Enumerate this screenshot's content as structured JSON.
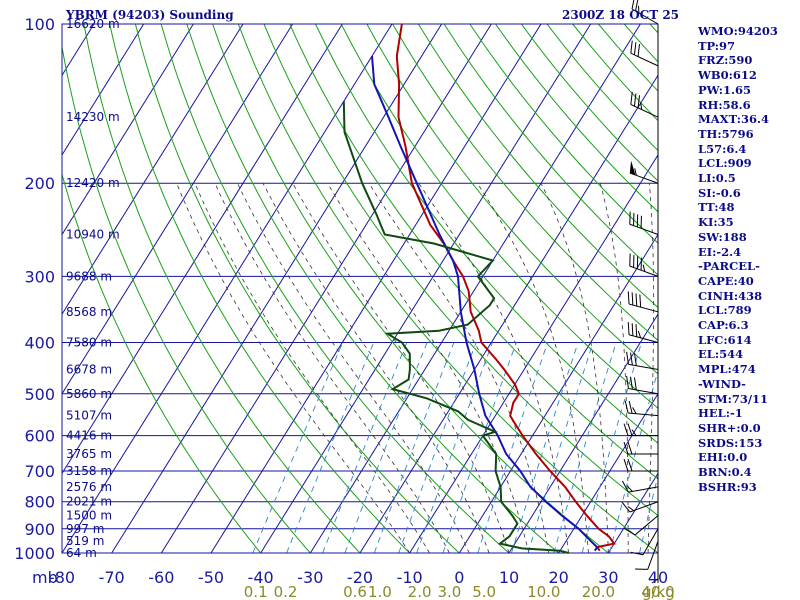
{
  "header": {
    "station_title": "YBRM (94203) Sounding",
    "datetime": "2300Z 18 OCT 25"
  },
  "indices": [
    "WMO:94203",
    "TP:97",
    "FRZ:590",
    "WB0:612",
    "PW:1.65",
    "RH:58.6",
    "MAXT:36.4",
    "TH:5796",
    "L57:6.4",
    "LCL:909",
    "LI:0.5",
    "SI:-0.6",
    "TT:48",
    "KI:35",
    "SW:188",
    "EI:-2.4",
    "-PARCEL-",
    "CAPE:40",
    "CINH:438",
    "LCL:789",
    "CAP:6.3",
    "LFC:614",
    "EL:544",
    "MPL:474",
    "-WIND-",
    "STM:73/11",
    "HEL:-1",
    "SHR+:0.0",
    "SRDS:153",
    "EHI:0.0",
    "BRN:0.4",
    "BSHR:93"
  ],
  "chart_data": {
    "type": "line",
    "title": "YBRM (94203) Sounding",
    "subtitle": "2300Z 18 OCT 25",
    "xlim": [
      -80,
      40
    ],
    "ylim": [
      1000,
      100
    ],
    "y_scale": "log",
    "grid": true,
    "pressure_ticks": [
      100,
      200,
      300,
      400,
      500,
      600,
      700,
      800,
      900,
      1000
    ],
    "pressure_unit_label": "mb",
    "temperature_ticks": [
      -80,
      -70,
      -60,
      -50,
      -40,
      -30,
      -20,
      -10,
      0,
      10,
      20,
      30,
      40
    ],
    "mixing_ratio_labels": [
      "0.1",
      "0.2",
      "0.6",
      "1.0",
      "2.0",
      "3.0",
      "5.0",
      "10.0",
      "20.0",
      "40.0"
    ],
    "mixing_ratio_unit": "g/kg",
    "mixing_ratio_positions": [
      -41,
      -35,
      -21,
      -16,
      -8,
      -2,
      5,
      17,
      28,
      40
    ],
    "height_labels": [
      {
        "p": 100,
        "text": "16620 m"
      },
      {
        "p": 150,
        "text": "14230 m"
      },
      {
        "p": 200,
        "text": "12420 m"
      },
      {
        "p": 250,
        "text": "10940 m"
      },
      {
        "p": 300,
        "text": "9688 m"
      },
      {
        "p": 350,
        "text": "8568 m"
      },
      {
        "p": 400,
        "text": "7580 m"
      },
      {
        "p": 450,
        "text": "6678 m"
      },
      {
        "p": 500,
        "text": "5860 m"
      },
      {
        "p": 550,
        "text": "5107 m"
      },
      {
        "p": 600,
        "text": "4416 m"
      },
      {
        "p": 650,
        "text": "3765 m"
      },
      {
        "p": 700,
        "text": "3158 m"
      },
      {
        "p": 750,
        "text": "2576 m"
      },
      {
        "p": 800,
        "text": "2021 m"
      },
      {
        "p": 850,
        "text": "1500 m"
      },
      {
        "p": 900,
        "text": "997 m"
      },
      {
        "p": 950,
        "text": "519 m"
      },
      {
        "p": 1000,
        "text": "64 m"
      }
    ],
    "series": [
      {
        "color": "#b00000",
        "points": [
          [
            990,
            28
          ],
          [
            975,
            27
          ],
          [
            960,
            30
          ],
          [
            930,
            28
          ],
          [
            900,
            25
          ],
          [
            850,
            21
          ],
          [
            800,
            17
          ],
          [
            750,
            13
          ],
          [
            700,
            8
          ],
          [
            650,
            3
          ],
          [
            600,
            -2
          ],
          [
            560,
            -6
          ],
          [
            550,
            -7
          ],
          [
            520,
            -8
          ],
          [
            500,
            -8
          ],
          [
            480,
            -10
          ],
          [
            450,
            -14
          ],
          [
            430,
            -17
          ],
          [
            400,
            -22
          ],
          [
            380,
            -24
          ],
          [
            350,
            -28
          ],
          [
            320,
            -31
          ],
          [
            300,
            -34
          ],
          [
            280,
            -38
          ],
          [
            260,
            -42
          ],
          [
            240,
            -47
          ],
          [
            200,
            -56
          ],
          [
            170,
            -62
          ],
          [
            150,
            -67
          ],
          [
            130,
            -71
          ],
          [
            115,
            -75
          ],
          [
            100,
            -78
          ]
        ]
      },
      {
        "color": "#1414b4",
        "points": [
          [
            990,
            27
          ],
          [
            975,
            27
          ],
          [
            950,
            25
          ],
          [
            900,
            21
          ],
          [
            850,
            16
          ],
          [
            800,
            11
          ],
          [
            750,
            6
          ],
          [
            700,
            2
          ],
          [
            650,
            -3
          ],
          [
            600,
            -7
          ],
          [
            550,
            -12
          ],
          [
            500,
            -16
          ],
          [
            450,
            -20
          ],
          [
            400,
            -25
          ],
          [
            350,
            -30
          ],
          [
            300,
            -35
          ],
          [
            280,
            -38
          ],
          [
            250,
            -44
          ],
          [
            200,
            -55
          ],
          [
            170,
            -63
          ],
          [
            150,
            -69
          ],
          [
            130,
            -76
          ],
          [
            115,
            -80
          ]
        ]
      },
      {
        "color": "#0f4a0f",
        "points": [
          [
            1000,
            22
          ],
          [
            990,
            20
          ],
          [
            980,
            12
          ],
          [
            960,
            7
          ],
          [
            930,
            8
          ],
          [
            900,
            8
          ],
          [
            880,
            8
          ],
          [
            850,
            6
          ],
          [
            800,
            2
          ],
          [
            750,
            0
          ],
          [
            700,
            -3
          ],
          [
            650,
            -5
          ],
          [
            610,
            -9
          ],
          [
            600,
            -10
          ],
          [
            590,
            -8
          ],
          [
            560,
            -15
          ],
          [
            540,
            -18
          ],
          [
            510,
            -26
          ],
          [
            490,
            -34
          ],
          [
            470,
            -32
          ],
          [
            450,
            -33
          ],
          [
            420,
            -35
          ],
          [
            400,
            -38
          ],
          [
            385,
            -42
          ],
          [
            380,
            -32
          ],
          [
            370,
            -27
          ],
          [
            340,
            -25
          ],
          [
            330,
            -25
          ],
          [
            300,
            -31
          ],
          [
            280,
            -30
          ],
          [
            260,
            -44
          ],
          [
            250,
            -55
          ],
          [
            240,
            -57
          ],
          [
            230,
            -59
          ],
          [
            200,
            -66
          ],
          [
            160,
            -76
          ],
          [
            140,
            -80
          ]
        ]
      }
    ],
    "wind_barbs": [
      {
        "p": 1000,
        "dir": 180,
        "kt": 5
      },
      {
        "p": 950,
        "dir": 200,
        "kt": 10
      },
      {
        "p": 900,
        "dir": 210,
        "kt": 10
      },
      {
        "p": 850,
        "dir": 230,
        "kt": 10
      },
      {
        "p": 800,
        "dir": 250,
        "kt": 15
      },
      {
        "p": 750,
        "dir": 260,
        "kt": 15
      },
      {
        "p": 700,
        "dir": 270,
        "kt": 20
      },
      {
        "p": 650,
        "dir": 270,
        "kt": 20
      },
      {
        "p": 600,
        "dir": 270,
        "kt": 25
      },
      {
        "p": 550,
        "dir": 275,
        "kt": 25
      },
      {
        "p": 500,
        "dir": 280,
        "kt": 30
      },
      {
        "p": 450,
        "dir": 280,
        "kt": 30
      },
      {
        "p": 400,
        "dir": 285,
        "kt": 35
      },
      {
        "p": 350,
        "dir": 285,
        "kt": 40
      },
      {
        "p": 300,
        "dir": 290,
        "kt": 45
      },
      {
        "p": 250,
        "dir": 290,
        "kt": 40
      },
      {
        "p": 200,
        "dir": 290,
        "kt": 55
      },
      {
        "p": 150,
        "dir": 295,
        "kt": 35
      },
      {
        "p": 120,
        "dir": 295,
        "kt": 30
      },
      {
        "p": 100,
        "dir": 300,
        "kt": 25
      }
    ]
  },
  "colors": {
    "isobar": "#1515a0",
    "isotherm": "#1515a0",
    "dry_adiabat": "#1aa01a",
    "moist_adiabat": "#333333",
    "mixing_ratio": "#2a88c8",
    "temperature": "#b00000",
    "parcel": "#1414b4",
    "dewpoint": "#0f4a0f"
  }
}
